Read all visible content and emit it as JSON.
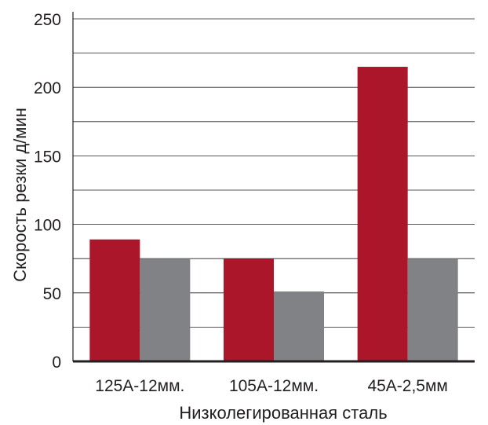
{
  "chart_data": {
    "type": "bar",
    "categories": [
      "125А-12мм.",
      "105А-12мм.",
      "45А-2,5мм"
    ],
    "series": [
      {
        "values": [
          89,
          75,
          215
        ],
        "color": "#ab162b"
      },
      {
        "values": [
          75,
          51,
          75
        ],
        "color": "#808285"
      }
    ],
    "xlabel": "Низколегированная сталь",
    "ylabel": "Скорость резки д/мин",
    "ylim": [
      0,
      250
    ],
    "yticks": [
      0,
      50,
      100,
      150,
      200,
      250
    ],
    "grid": true,
    "grid_step": 25,
    "legend": "none"
  }
}
